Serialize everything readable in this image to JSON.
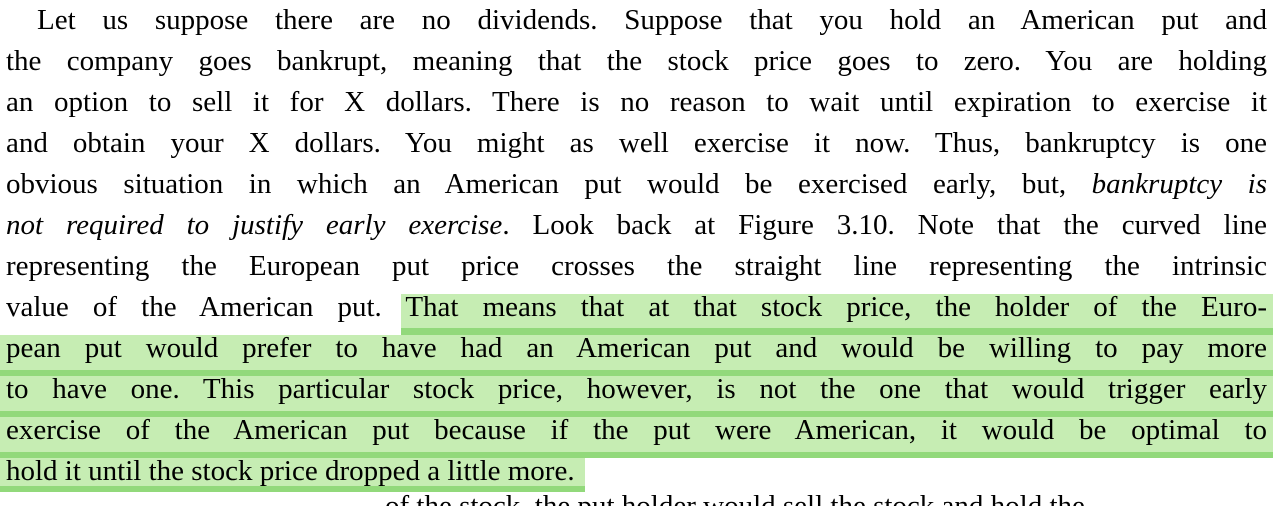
{
  "page": {
    "colors": {
      "background": "#ffffff",
      "text": "#000000",
      "highlight": "#c6edb3",
      "highlight_overlap": "#92d97b"
    },
    "figure_reference": "Figure 3.10",
    "lines": [
      {
        "indent": true,
        "segments": [
          {
            "text": "Let us suppose there are no dividends. Suppose that you hold an American put and"
          }
        ]
      },
      {
        "segments": [
          {
            "text": "the company goes bankrupt, meaning that the stock price goes to zero. You are holding"
          }
        ]
      },
      {
        "segments": [
          {
            "text": "an option to sell it for X dollars. There is no reason to wait until expiration to exercise it"
          }
        ]
      },
      {
        "segments": [
          {
            "text": "and obtain your X dollars. You might as well exercise it now. Thus, bankruptcy is one"
          }
        ]
      },
      {
        "segments": [
          {
            "text": "obvious situation in which an American put would be exercised early, but, "
          },
          {
            "text": "bankruptcy is",
            "italic": true
          }
        ]
      },
      {
        "segments": [
          {
            "text": "not required to justify early exercise",
            "italic": true
          },
          {
            "text": ". Look back at Figure 3.10. Note that the curved line"
          }
        ]
      },
      {
        "segments": [
          {
            "text": "representing the European put price crosses the straight line representing the intrinsic"
          }
        ]
      },
      {
        "segments": [
          {
            "text": "value of the American put. "
          },
          {
            "text": "That means that at that stock price, the holder of the Euro-",
            "highlight": true,
            "anchor": "start"
          }
        ]
      },
      {
        "segments": [
          {
            "text": "pean put would prefer to have had an American put and would be willing to pay more",
            "highlight": true
          }
        ]
      },
      {
        "segments": [
          {
            "text": "to have one. This particular stock price, however, is not the one that would trigger early",
            "highlight": true
          }
        ]
      },
      {
        "segments": [
          {
            "text": "exercise of the American put because if the put were American, it would be optimal to",
            "highlight": true
          }
        ]
      },
      {
        "last": true,
        "segments": [
          {
            "text": "hold it until the stock price dropped a little more.",
            "highlight": true,
            "anchor": "end"
          }
        ]
      }
    ],
    "cutoff_line": {
      "text": "of the stock, the put holder would sell the stock and hold the"
    }
  }
}
